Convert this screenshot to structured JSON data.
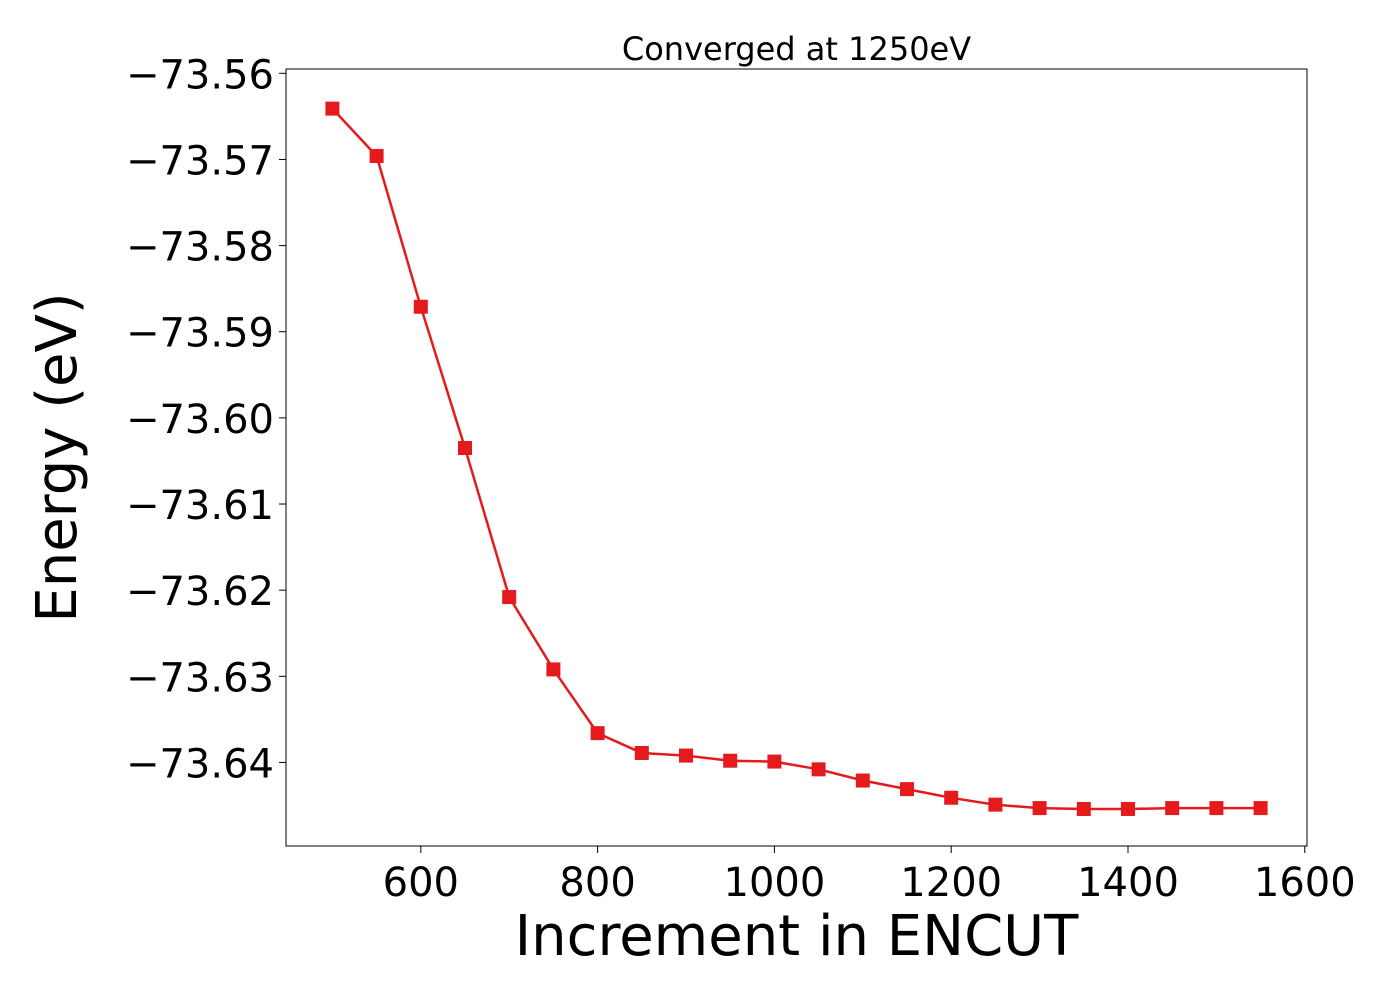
{
  "chart_data": {
    "type": "line",
    "title": "Converged at 1250eV",
    "xlabel": "Increment in ENCUT",
    "ylabel": "Energy (eV)",
    "xlim": [
      447.5,
      1602.5
    ],
    "ylim": [
      -73.6497,
      -73.5595
    ],
    "x_ticks": [
      600,
      800,
      1000,
      1200,
      1400,
      1600
    ],
    "x_tick_labels": [
      "600",
      "800",
      "1000",
      "1200",
      "1400",
      "1600"
    ],
    "y_ticks": [
      -73.56,
      -73.57,
      -73.58,
      -73.59,
      -73.6,
      -73.61,
      -73.62,
      -73.63,
      -73.64
    ],
    "y_tick_labels": [
      "−73.56",
      "−73.57",
      "−73.58",
      "−73.59",
      "−73.60",
      "−73.61",
      "−73.62",
      "−73.63",
      "−73.64"
    ],
    "grid": false,
    "series": [
      {
        "color": "#e41a1c",
        "marker": "square",
        "x": [
          500,
          550,
          600,
          650,
          700,
          750,
          800,
          850,
          900,
          950,
          1000,
          1050,
          1100,
          1150,
          1200,
          1250,
          1300,
          1350,
          1400,
          1450,
          1500,
          1550
        ],
        "y": [
          -73.5641,
          -73.5696,
          -73.5871,
          -73.6035,
          -73.6208,
          -73.6292,
          -73.6366,
          -73.6389,
          -73.6392,
          -73.6398,
          -73.6399,
          -73.6408,
          -73.6421,
          -73.6431,
          -73.6441,
          -73.6449,
          -73.6453,
          -73.6454,
          -73.6454,
          -73.6453,
          -73.6453,
          -73.6453
        ]
      }
    ]
  }
}
